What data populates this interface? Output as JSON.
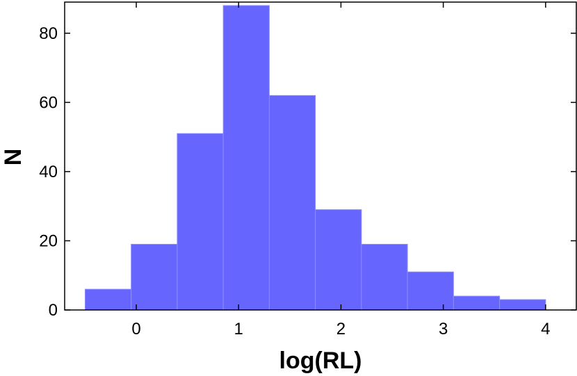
{
  "chart_data": {
    "type": "bar",
    "title": "",
    "xlabel": "log(RL)",
    "ylabel": "N",
    "bins": [
      {
        "x0": -0.5,
        "x1": -0.05,
        "value": 6
      },
      {
        "x0": -0.05,
        "x1": 0.4,
        "value": 19
      },
      {
        "x0": 0.4,
        "x1": 0.85,
        "value": 51
      },
      {
        "x0": 0.85,
        "x1": 1.3,
        "value": 88
      },
      {
        "x0": 1.3,
        "x1": 1.75,
        "value": 62
      },
      {
        "x0": 1.75,
        "x1": 2.2,
        "value": 29
      },
      {
        "x0": 2.2,
        "x1": 2.65,
        "value": 19
      },
      {
        "x0": 2.65,
        "x1": 3.1,
        "value": 11
      },
      {
        "x0": 3.1,
        "x1": 3.55,
        "value": 4
      },
      {
        "x0": 3.55,
        "x1": 4.0,
        "value": 3
      }
    ],
    "xlim": [
      -0.7,
      4.3
    ],
    "ylim": [
      0,
      89
    ],
    "xticks": [
      0,
      1,
      2,
      3,
      4
    ],
    "yticks": [
      0,
      20,
      40,
      60,
      80
    ],
    "grid": false,
    "bar_color": "#6666ff"
  }
}
